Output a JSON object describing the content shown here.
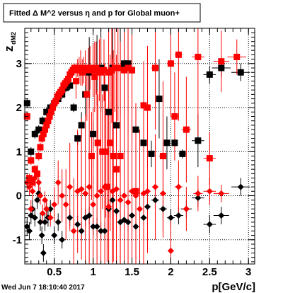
{
  "chart_data": {
    "type": "scatter",
    "title": "Fitted Δ M^2 versus η and p for Global muon+",
    "xlabel": "p[GeV/c]",
    "ylabel": "z",
    "ylabel_sub": "dM2",
    "xlim": [
      0.12,
      3.08
    ],
    "ylim": [
      -1.55,
      3.8
    ],
    "xticks": [
      "0.5",
      "1",
      "1.5",
      "2",
      "2.5",
      "3"
    ],
    "yticks": [
      "-1",
      "0",
      "1",
      "2",
      "3"
    ],
    "grid": true,
    "timestamp": "Wed Jun  7 18:10:40 2017",
    "series": [
      {
        "marker": "square",
        "color": "#000000",
        "points": [
          [
            0.15,
            2.1
          ],
          [
            0.2,
            1.0
          ],
          [
            0.25,
            1.4
          ],
          [
            0.3,
            1.5
          ],
          [
            0.35,
            1.7
          ],
          [
            0.4,
            1.9
          ],
          [
            0.45,
            2.0
          ],
          [
            0.5,
            2.1
          ],
          [
            0.55,
            2.2
          ],
          [
            0.6,
            2.3
          ],
          [
            0.65,
            2.45
          ],
          [
            0.7,
            2.5
          ],
          [
            0.75,
            2.0
          ],
          [
            0.8,
            1.3
          ],
          [
            0.85,
            1.6
          ],
          [
            0.9,
            2.3
          ],
          [
            0.95,
            2.8
          ],
          [
            1.0,
            1.4
          ],
          [
            1.05,
            2.85
          ],
          [
            1.1,
            2.9
          ],
          [
            1.15,
            2.45
          ],
          [
            1.2,
            1.9
          ],
          [
            1.25,
            2.9
          ],
          [
            1.3,
            1.6
          ],
          [
            1.35,
            2.9
          ],
          [
            1.4,
            3.0
          ],
          [
            1.45,
            3.0
          ],
          [
            1.5,
            2.85
          ],
          [
            1.55,
            1.5
          ],
          [
            1.65,
            1.2
          ],
          [
            1.75,
            0.95
          ],
          [
            1.85,
            2.2
          ],
          [
            1.95,
            1.2
          ],
          [
            2.05,
            1.2
          ],
          [
            2.15,
            0.95
          ],
          [
            2.35,
            1.25
          ],
          [
            2.5,
            2.75
          ],
          [
            2.65,
            2.9
          ],
          [
            2.9,
            2.8
          ]
        ],
        "yerr": [
          0.1,
          0.1,
          0.1,
          0.1,
          0.1,
          0.1,
          0.1,
          0.1,
          0.1,
          0.1,
          0.1,
          0.1,
          0.1,
          0.15,
          0.3,
          0.5,
          0.8,
          0.3,
          0.8,
          1.0,
          0.3,
          1.0,
          1.2,
          0.5,
          1.1,
          1.0,
          1.2,
          1.0,
          0.3,
          0.2,
          0.3,
          0.9,
          0.6,
          0.1,
          0.1,
          0.6,
          0.2,
          0.2,
          0.2
        ],
        "xerr": [
          0.03,
          0.03,
          0.03,
          0.03,
          0.03,
          0.03,
          0.03,
          0.03,
          0.03,
          0.03,
          0.03,
          0.03,
          0.03,
          0.03,
          0.03,
          0.03,
          0.03,
          0.03,
          0.03,
          0.03,
          0.03,
          0.03,
          0.03,
          0.03,
          0.03,
          0.03,
          0.03,
          0.03,
          0.04,
          0.04,
          0.04,
          0.04,
          0.04,
          0.04,
          0.05,
          0.08,
          0.08,
          0.12,
          0.12
        ]
      },
      {
        "marker": "square",
        "color": "#ff0000",
        "points": [
          [
            0.15,
            1.8
          ],
          [
            0.18,
            0.4
          ],
          [
            0.2,
            0.8
          ],
          [
            0.22,
            0.3
          ],
          [
            0.25,
            0.6
          ],
          [
            0.28,
            0.5
          ],
          [
            0.3,
            0.9
          ],
          [
            0.32,
            1.1
          ],
          [
            0.34,
            1.3
          ],
          [
            0.36,
            1.4
          ],
          [
            0.38,
            1.5
          ],
          [
            0.4,
            1.6
          ],
          [
            0.42,
            1.7
          ],
          [
            0.44,
            1.8
          ],
          [
            0.46,
            1.9
          ],
          [
            0.48,
            2.0
          ],
          [
            0.5,
            2.1
          ],
          [
            0.52,
            2.15
          ],
          [
            0.54,
            2.25
          ],
          [
            0.56,
            2.3
          ],
          [
            0.58,
            2.35
          ],
          [
            0.6,
            2.4
          ],
          [
            0.62,
            2.5
          ],
          [
            0.64,
            2.55
          ],
          [
            0.66,
            2.6
          ],
          [
            0.68,
            2.65
          ],
          [
            0.7,
            2.75
          ],
          [
            0.72,
            2.8
          ],
          [
            0.74,
            2.85
          ],
          [
            0.76,
            2.9
          ],
          [
            0.78,
            2.6
          ],
          [
            0.8,
            2.9
          ],
          [
            0.82,
            2.85
          ],
          [
            0.84,
            2.9
          ],
          [
            0.86,
            2.8
          ],
          [
            0.88,
            2.85
          ],
          [
            0.9,
            2.9
          ],
          [
            0.92,
            2.3
          ],
          [
            0.94,
            2.85
          ],
          [
            0.96,
            2.9
          ],
          [
            0.98,
            0.9
          ],
          [
            1.0,
            2.85
          ],
          [
            1.02,
            2.7
          ],
          [
            1.04,
            2.9
          ],
          [
            1.06,
            1.2
          ],
          [
            1.08,
            2.85
          ],
          [
            1.1,
            2.8
          ],
          [
            1.12,
            1.0
          ],
          [
            1.14,
            2.85
          ],
          [
            1.16,
            1.0
          ],
          [
            1.18,
            0.2
          ],
          [
            1.2,
            2.8
          ],
          [
            1.22,
            1.2
          ],
          [
            1.24,
            2.85
          ],
          [
            1.26,
            0.9
          ],
          [
            1.28,
            2.9
          ],
          [
            1.3,
            0.6
          ],
          [
            1.32,
            2.9
          ],
          [
            1.35,
            0.9
          ],
          [
            1.4,
            2.85
          ],
          [
            1.45,
            2.9
          ],
          [
            1.5,
            2.85
          ],
          [
            1.55,
            0.1
          ],
          [
            1.65,
            2.05
          ],
          [
            1.7,
            2.0
          ],
          [
            1.8,
            2.9
          ],
          [
            1.9,
            0.9
          ],
          [
            2.0,
            3.0
          ],
          [
            2.05,
            1.8
          ],
          [
            2.1,
            3.2
          ],
          [
            2.2,
            1.5
          ],
          [
            2.35,
            3.15
          ],
          [
            2.5,
            0.85
          ],
          [
            2.65,
            3.05
          ],
          [
            2.85,
            3.15
          ]
        ],
        "yerr": [
          0.1,
          0.1,
          0.1,
          0.1,
          0.1,
          0.1,
          0.1,
          0.1,
          0.1,
          0.1,
          0.1,
          0.1,
          0.1,
          0.1,
          0.1,
          0.1,
          0.1,
          0.1,
          0.1,
          0.1,
          0.1,
          0.1,
          0.1,
          0.1,
          0.1,
          0.1,
          0.1,
          0.1,
          0.1,
          0.1,
          0.4,
          0.2,
          0.3,
          0.4,
          0.3,
          0.3,
          0.4,
          0.6,
          0.5,
          0.5,
          1.0,
          0.6,
          0.8,
          0.6,
          1.1,
          0.7,
          0.8,
          1.3,
          0.7,
          1.5,
          1.7,
          1.0,
          2.0,
          1.2,
          2.4,
          1.0,
          2.6,
          1.2,
          2.6,
          1.1,
          1.5,
          1.6,
          2.0,
          1.0,
          1.4,
          1.4,
          1.7,
          1.2,
          1.0,
          1.5,
          1.2,
          1.8,
          0.6,
          0.7,
          0.4
        ],
        "xerr": [
          0.02,
          0.02,
          0.02,
          0.02,
          0.02,
          0.02,
          0.02,
          0.02,
          0.02,
          0.02,
          0.02,
          0.02,
          0.02,
          0.02,
          0.02,
          0.02,
          0.02,
          0.02,
          0.02,
          0.02,
          0.02,
          0.02,
          0.02,
          0.02,
          0.02,
          0.02,
          0.02,
          0.02,
          0.02,
          0.02,
          0.02,
          0.02,
          0.02,
          0.02,
          0.02,
          0.02,
          0.02,
          0.02,
          0.02,
          0.02,
          0.02,
          0.02,
          0.02,
          0.02,
          0.02,
          0.02,
          0.02,
          0.02,
          0.02,
          0.02,
          0.02,
          0.02,
          0.02,
          0.02,
          0.02,
          0.02,
          0.02,
          0.02,
          0.03,
          0.03,
          0.03,
          0.03,
          0.04,
          0.04,
          0.04,
          0.05,
          0.05,
          0.05,
          0.05,
          0.05,
          0.06,
          0.08,
          0.08,
          0.1,
          0.12
        ]
      },
      {
        "marker": "diamond",
        "color": "#000000",
        "points": [
          [
            0.15,
            -0.7
          ],
          [
            0.18,
            -0.8
          ],
          [
            0.2,
            -0.45
          ],
          [
            0.22,
            -0.3
          ],
          [
            0.25,
            -0.5
          ],
          [
            0.28,
            -0.1
          ],
          [
            0.3,
            0.05
          ],
          [
            0.32,
            -0.6
          ],
          [
            0.34,
            -0.9
          ],
          [
            0.36,
            -1.3
          ],
          [
            0.38,
            -0.6
          ],
          [
            0.4,
            -0.3
          ],
          [
            0.42,
            -0.5
          ],
          [
            0.45,
            -0.3
          ],
          [
            0.5,
            -0.9
          ],
          [
            0.55,
            -0.6
          ],
          [
            0.6,
            -1.0
          ],
          [
            0.7,
            -0.5
          ],
          [
            0.8,
            -0.65
          ],
          [
            0.85,
            -0.8
          ],
          [
            0.9,
            -0.5
          ],
          [
            0.95,
            -0.45
          ],
          [
            1.0,
            -0.7
          ],
          [
            1.05,
            -0.7
          ],
          [
            1.1,
            -0.8
          ],
          [
            1.15,
            -0.8
          ],
          [
            1.2,
            -0.3
          ],
          [
            1.25,
            -0.1
          ],
          [
            1.3,
            -0.35
          ],
          [
            1.35,
            -0.6
          ],
          [
            1.4,
            -0.55
          ],
          [
            1.45,
            -0.6
          ],
          [
            1.5,
            -0.45
          ],
          [
            1.55,
            -0.7
          ],
          [
            1.65,
            -0.5
          ],
          [
            1.7,
            -0.25
          ],
          [
            1.8,
            -0.1
          ],
          [
            1.9,
            -0.3
          ],
          [
            2.0,
            -0.5
          ],
          [
            2.1,
            -0.45
          ],
          [
            2.2,
            -0.3
          ],
          [
            2.35,
            -0.05
          ],
          [
            2.5,
            -0.65
          ],
          [
            2.65,
            -0.45
          ],
          [
            2.9,
            0.2
          ]
        ],
        "yerr": [
          0.2,
          0.2,
          0.2,
          0.2,
          0.2,
          0.2,
          0.2,
          0.2,
          0.2,
          0.2,
          0.2,
          0.2,
          0.2,
          0.2,
          0.2,
          0.2,
          0.2,
          0.2,
          0.2,
          0.2,
          0.2,
          0.2,
          0.2,
          0.2,
          0.2,
          0.2,
          0.2,
          0.2,
          0.2,
          0.2,
          0.2,
          0.2,
          0.2,
          0.2,
          0.2,
          0.2,
          0.2,
          0.2,
          0.2,
          0.2,
          0.2,
          0.2,
          0.2,
          0.2,
          0.2
        ],
        "xerr": [
          0.02,
          0.02,
          0.02,
          0.02,
          0.02,
          0.02,
          0.02,
          0.02,
          0.02,
          0.02,
          0.02,
          0.02,
          0.02,
          0.02,
          0.02,
          0.02,
          0.02,
          0.02,
          0.02,
          0.02,
          0.02,
          0.02,
          0.02,
          0.02,
          0.02,
          0.02,
          0.02,
          0.02,
          0.03,
          0.03,
          0.03,
          0.03,
          0.03,
          0.03,
          0.04,
          0.04,
          0.05,
          0.05,
          0.05,
          0.06,
          0.07,
          0.08,
          0.08,
          0.1,
          0.12
        ]
      },
      {
        "marker": "diamond",
        "color": "#ff0000",
        "points": [
          [
            0.15,
            0.3
          ],
          [
            0.18,
            0.2
          ],
          [
            0.2,
            -0.3
          ],
          [
            0.22,
            0.1
          ],
          [
            0.25,
            0.4
          ],
          [
            0.28,
            0.5
          ],
          [
            0.3,
            0.3
          ],
          [
            0.32,
            0.0
          ],
          [
            0.35,
            -0.4
          ],
          [
            0.38,
            -0.1
          ],
          [
            0.4,
            -0.3
          ],
          [
            0.45,
            -0.5
          ],
          [
            0.5,
            -0.2
          ],
          [
            0.55,
            0.3
          ],
          [
            0.6,
            0.0
          ],
          [
            0.65,
            -0.2
          ],
          [
            0.7,
            0.2
          ],
          [
            0.75,
            -0.8
          ],
          [
            0.8,
            0.1
          ],
          [
            0.85,
            0.15
          ],
          [
            0.9,
            0.05
          ],
          [
            0.95,
            0.2
          ],
          [
            1.0,
            -0.2
          ],
          [
            1.05,
            0.0
          ],
          [
            1.1,
            0.1
          ],
          [
            1.15,
            0.2
          ],
          [
            1.2,
            -0.25
          ],
          [
            1.25,
            0.1
          ],
          [
            1.3,
            0.15
          ],
          [
            1.35,
            -0.1
          ],
          [
            1.4,
            0.0
          ],
          [
            1.45,
            -0.15
          ],
          [
            1.5,
            0.1
          ],
          [
            1.55,
            0.0
          ],
          [
            1.6,
            -0.3
          ],
          [
            1.65,
            0.05
          ],
          [
            1.7,
            0.1
          ],
          [
            1.8,
            0.2
          ],
          [
            1.9,
            0.05
          ],
          [
            2.0,
            -1.25
          ],
          [
            2.1,
            0.2
          ],
          [
            2.2,
            -0.3
          ],
          [
            2.35,
            0.05
          ],
          [
            2.5,
            0.1
          ],
          [
            2.65,
            0.05
          ]
        ],
        "yerr": [
          0.2,
          0.2,
          0.2,
          0.2,
          0.2,
          0.2,
          0.2,
          0.2,
          0.2,
          0.2,
          0.2,
          0.2,
          0.4,
          0.5,
          0.6,
          0.8,
          1.0,
          1.2,
          1.4,
          1.6,
          1.8,
          2.0,
          2.2,
          2.4,
          2.6,
          2.8,
          3.0,
          3.0,
          3.0,
          2.8,
          2.6,
          2.4,
          2.2,
          2.0,
          1.8,
          1.6,
          1.4,
          1.2,
          1.0,
          0.8,
          0.6,
          0.5,
          0.4,
          0.3,
          0.2
        ],
        "xerr": [
          0.02,
          0.02,
          0.02,
          0.02,
          0.02,
          0.02,
          0.02,
          0.02,
          0.02,
          0.02,
          0.02,
          0.02,
          0.02,
          0.02,
          0.02,
          0.02,
          0.02,
          0.02,
          0.02,
          0.02,
          0.02,
          0.02,
          0.02,
          0.02,
          0.02,
          0.02,
          0.02,
          0.02,
          0.02,
          0.02,
          0.02,
          0.02,
          0.02,
          0.02,
          0.02,
          0.02,
          0.03,
          0.04,
          0.04,
          0.04,
          0.05,
          0.05,
          0.06,
          0.08,
          0.1
        ]
      }
    ]
  }
}
